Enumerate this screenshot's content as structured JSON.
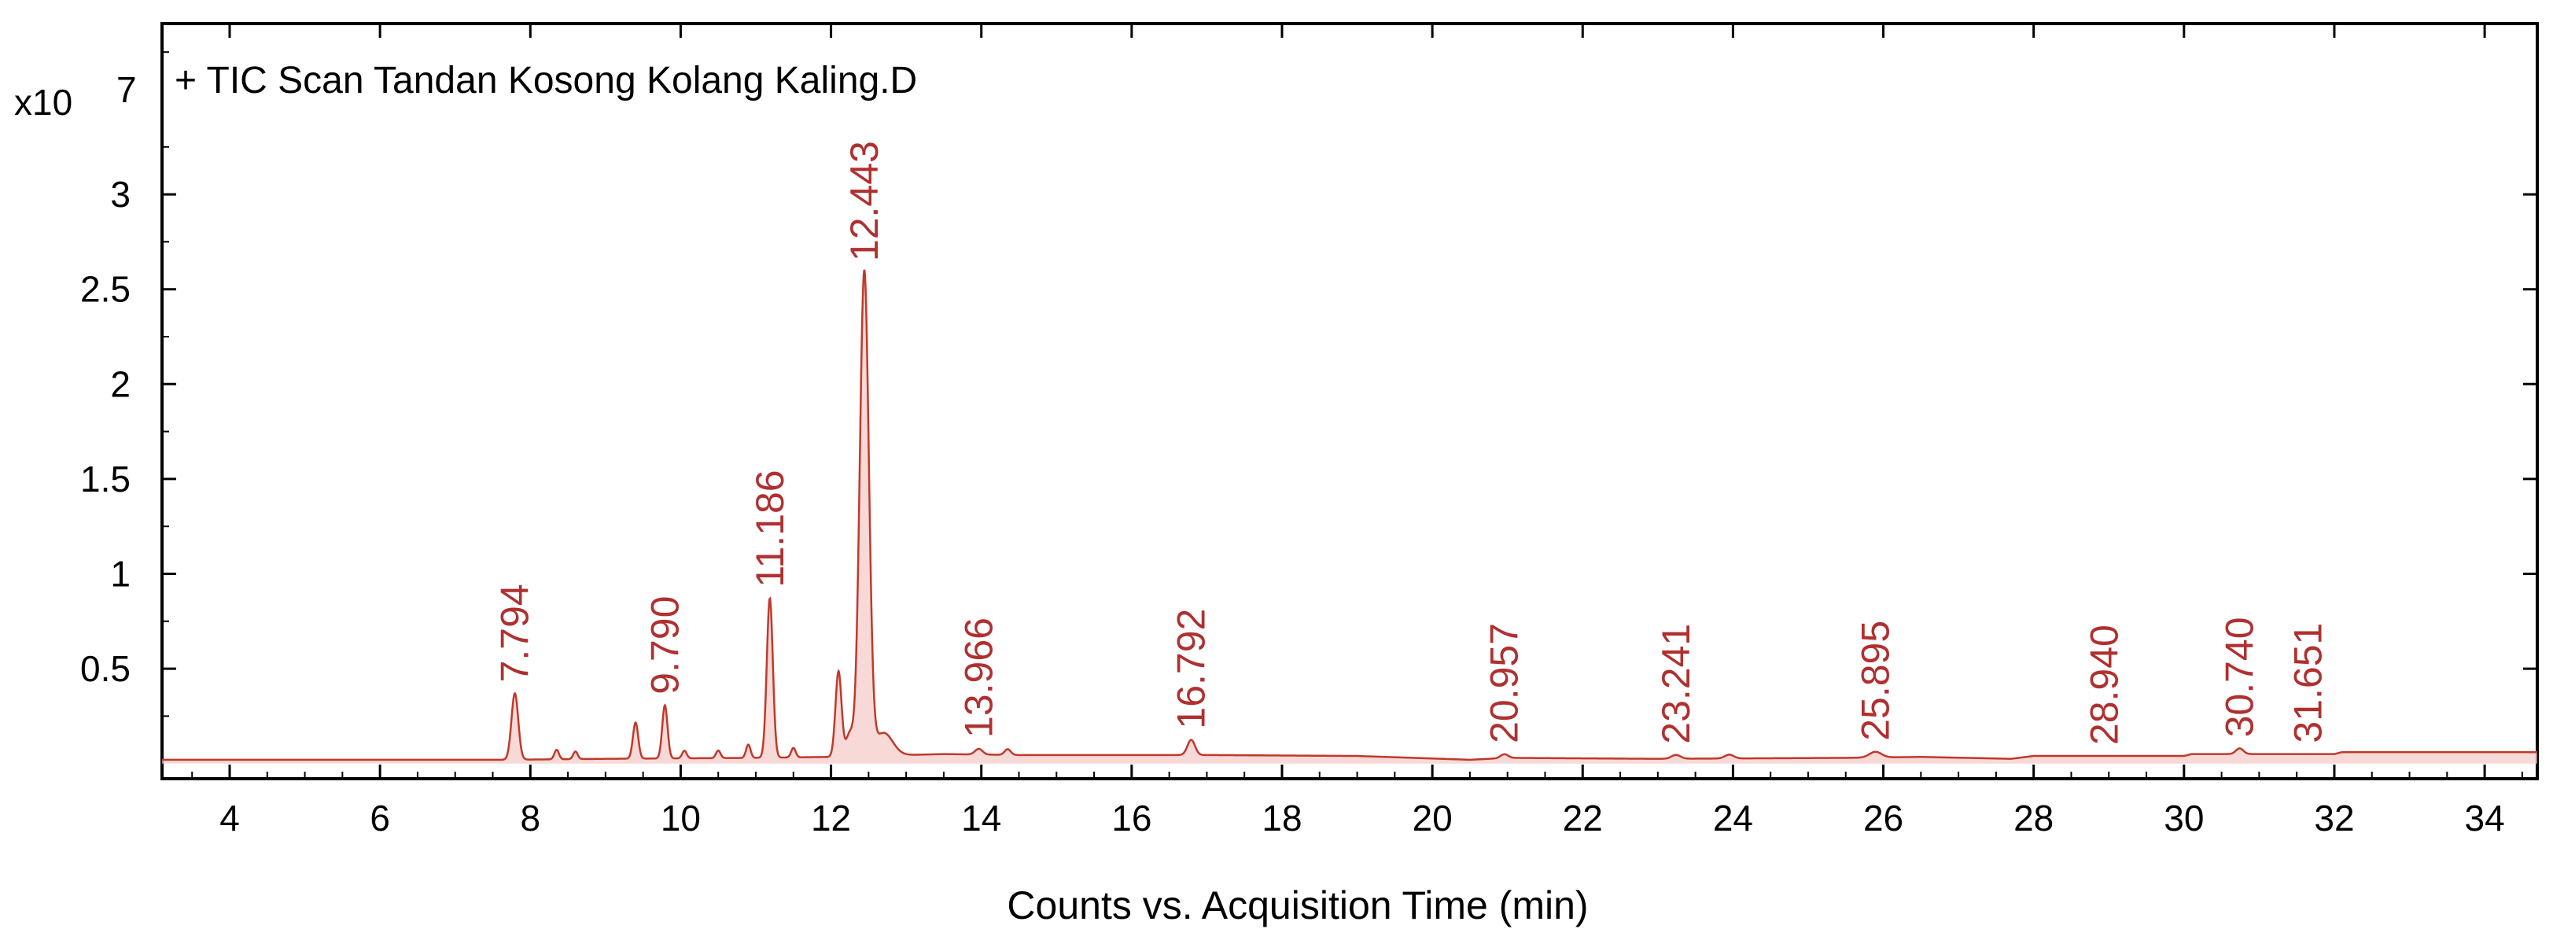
{
  "chart_data": {
    "type": "line",
    "title": "+ TIC Scan Tandan Kosong Kolang Kaling.D",
    "xlabel": "Counts vs. Acquisition Time (min)",
    "ylabel": "",
    "y_scale_prefix": "x10",
    "y_scale_exponent": "7",
    "xlim": [
      3.1,
      34.7
    ],
    "ylim": [
      -0.08,
      3.9
    ],
    "x_ticks": [
      4,
      6,
      8,
      10,
      12,
      14,
      16,
      18,
      20,
      22,
      24,
      26,
      28,
      30,
      32,
      34
    ],
    "y_ticks": [
      0.5,
      1,
      1.5,
      2,
      2.5,
      3
    ],
    "grid": false,
    "line_color": "#c0392b",
    "label_color": "#b03030",
    "baseline": [
      [
        3.1,
        0.02
      ],
      [
        7.7,
        0.02
      ],
      [
        9.0,
        0.025
      ],
      [
        11.0,
        0.03
      ],
      [
        12.0,
        0.035
      ],
      [
        13.5,
        0.05
      ],
      [
        14.5,
        0.045
      ],
      [
        17.0,
        0.045
      ],
      [
        19.0,
        0.04
      ],
      [
        20.5,
        0.02
      ],
      [
        21.0,
        0.03
      ],
      [
        23.0,
        0.025
      ],
      [
        25.5,
        0.03
      ],
      [
        26.5,
        0.035
      ],
      [
        27.7,
        0.025
      ],
      [
        28.0,
        0.04
      ],
      [
        30.0,
        0.04
      ],
      [
        30.1,
        0.05
      ],
      [
        32.0,
        0.05
      ],
      [
        32.1,
        0.06
      ],
      [
        34.7,
        0.06
      ]
    ],
    "peaks": [
      {
        "x": 7.794,
        "y": 0.35,
        "w": 0.045,
        "label": "7.794"
      },
      {
        "x": 8.35,
        "y": 0.05,
        "w": 0.03
      },
      {
        "x": 8.6,
        "y": 0.04,
        "w": 0.03
      },
      {
        "x": 9.4,
        "y": 0.19,
        "w": 0.035
      },
      {
        "x": 9.79,
        "y": 0.28,
        "w": 0.035,
        "label": "9.790"
      },
      {
        "x": 10.05,
        "y": 0.04,
        "w": 0.03
      },
      {
        "x": 10.5,
        "y": 0.04,
        "w": 0.03
      },
      {
        "x": 10.9,
        "y": 0.07,
        "w": 0.03
      },
      {
        "x": 11.186,
        "y": 0.84,
        "w": 0.04,
        "label": "11.186"
      },
      {
        "x": 11.5,
        "y": 0.05,
        "w": 0.03
      },
      {
        "x": 12.1,
        "y": 0.45,
        "w": 0.04
      },
      {
        "x": 12.25,
        "y": 0.12,
        "w": 0.05
      },
      {
        "x": 12.443,
        "y": 2.55,
        "w": 0.06,
        "label": "12.443"
      },
      {
        "x": 12.7,
        "y": 0.12,
        "w": 0.12
      },
      {
        "x": 13.966,
        "y": 0.03,
        "w": 0.05,
        "label": "13.966"
      },
      {
        "x": 14.35,
        "y": 0.03,
        "w": 0.04
      },
      {
        "x": 16.792,
        "y": 0.08,
        "w": 0.05,
        "label": "16.792"
      },
      {
        "x": 20.957,
        "y": 0.02,
        "w": 0.05,
        "label": "20.957"
      },
      {
        "x": 23.241,
        "y": 0.02,
        "w": 0.06,
        "label": "23.241"
      },
      {
        "x": 23.95,
        "y": 0.02,
        "w": 0.06
      },
      {
        "x": 25.895,
        "y": 0.03,
        "w": 0.08,
        "label": "25.895"
      },
      {
        "x": 28.94,
        "y": 0.0,
        "w": 0.05,
        "label": "28.940"
      },
      {
        "x": 30.74,
        "y": 0.03,
        "w": 0.05,
        "label": "30.740"
      },
      {
        "x": 31.651,
        "y": 0.0,
        "w": 0.05,
        "label": "31.651"
      }
    ]
  }
}
